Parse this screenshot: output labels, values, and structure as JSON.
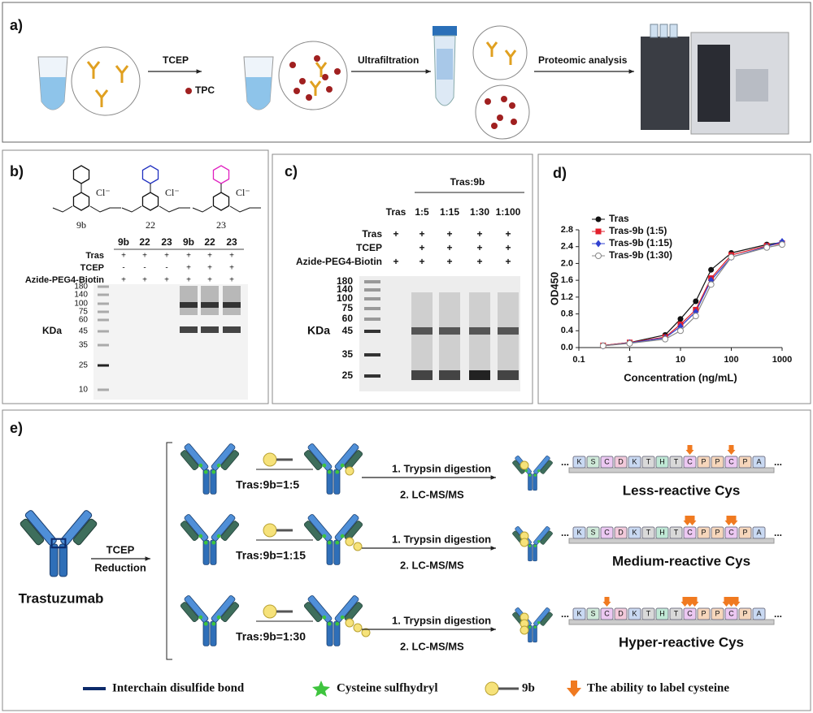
{
  "panel_a": {
    "label": "a)",
    "reagent": "TCEP",
    "probe": "TPC",
    "step_2": "Ultrafiltration",
    "step_3": "Proteomic analysis"
  },
  "panel_b": {
    "label": "b)",
    "compounds": [
      "9b",
      "22",
      "23"
    ],
    "counter_ion": "Cl⁻",
    "lanes": [
      "9b",
      "22",
      "23",
      "9b",
      "22",
      "23"
    ],
    "rows": [
      {
        "name": "Tras",
        "marks": [
          "+",
          "+",
          "+",
          "+",
          "+",
          "+"
        ]
      },
      {
        "name": "TCEP",
        "marks": [
          "-",
          "-",
          "-",
          "+",
          "+",
          "+"
        ]
      },
      {
        "name": "Azide-PEG4-Biotin",
        "marks": [
          "+",
          "+",
          "+",
          "+",
          "+",
          "+"
        ]
      }
    ],
    "unit": "KDa",
    "markers": [
      180,
      140,
      100,
      75,
      60,
      45,
      35,
      25,
      10
    ]
  },
  "panel_c": {
    "label": "c)",
    "group": "Tras:9b",
    "lanes": [
      "Tras",
      "1:5",
      "1:15",
      "1:30",
      "1:100"
    ],
    "rows": [
      {
        "name": "Tras",
        "marks": [
          "+",
          "+",
          "+",
          "+",
          "+"
        ]
      },
      {
        "name": "TCEP",
        "marks": [
          null,
          "+",
          "+",
          "+",
          "+"
        ]
      },
      {
        "name": "Azide-PEG4-Biotin",
        "marks": [
          "+",
          "+",
          "+",
          "+",
          "+"
        ]
      }
    ],
    "unit": "KDa",
    "markers": [
      180,
      140,
      100,
      75,
      60,
      45,
      35,
      25
    ]
  },
  "chart_data": {
    "type": "line",
    "panel_label": "d)",
    "x_label": "Concentration (ng/mL)",
    "y_label": "OD450",
    "x": [
      0.3,
      1,
      5,
      10,
      20,
      40,
      100,
      500,
      1000
    ],
    "log_x": true,
    "xlim": [
      0.1,
      1000
    ],
    "xticks": [
      0.1,
      1,
      10,
      100,
      1000
    ],
    "ylim": [
      0,
      2.8
    ],
    "yticks": [
      {
        "value": 0,
        "label": "0.0"
      },
      0.4,
      0.8,
      1.2,
      1.6,
      {
        "value": 2,
        "label": "2.0"
      },
      2.4,
      2.8
    ],
    "legend": "upper-left",
    "series": [
      {
        "name": "Tras",
        "color": "#111111",
        "marker": "circle",
        "values": [
          0.05,
          0.12,
          0.3,
          0.68,
          1.1,
          1.85,
          2.25,
          2.45,
          2.5
        ]
      },
      {
        "name": "Tras-9b (1:5)",
        "color": "#e2202c",
        "marker": "square",
        "values": [
          0.05,
          0.12,
          0.25,
          0.55,
          0.9,
          1.65,
          2.2,
          2.42,
          2.48
        ]
      },
      {
        "name": "Tras-9b (1:15)",
        "color": "#3040d0",
        "marker": "diamond",
        "values": [
          0.04,
          0.11,
          0.23,
          0.5,
          0.85,
          1.6,
          2.15,
          2.4,
          2.52
        ]
      },
      {
        "name": "Tras-9b (1:30)",
        "color": "#888888",
        "marker": "open-circle",
        "values": [
          0.04,
          0.1,
          0.2,
          0.4,
          0.75,
          1.5,
          2.15,
          2.38,
          2.45
        ]
      }
    ]
  },
  "panel_e": {
    "label": "e)",
    "antibody": "Trastuzumab",
    "reagent": "TCEP",
    "step": "Reduction",
    "digestion": "1. Trypsin digestion",
    "analysis": "2. LC-MS/MS",
    "conditions": [
      {
        "ratio": "Tras:9b=1:5",
        "result": "Less-reactive Cys"
      },
      {
        "ratio": "Tras:9b=1:15",
        "result": "Medium-reactive Cys"
      },
      {
        "ratio": "Tras:9b=1:30",
        "result": "Hyper-reactive Cys"
      }
    ],
    "sequence": [
      "K",
      "S",
      "C",
      "D",
      "K",
      "T",
      "H",
      "T",
      "C",
      "P",
      "P",
      "C",
      "P",
      "A"
    ],
    "ellipsis": "...",
    "legend": [
      "Interchain disulfide bond",
      "Cysteine sulfhydryl",
      "9b",
      "The ability to label cysteine"
    ]
  }
}
